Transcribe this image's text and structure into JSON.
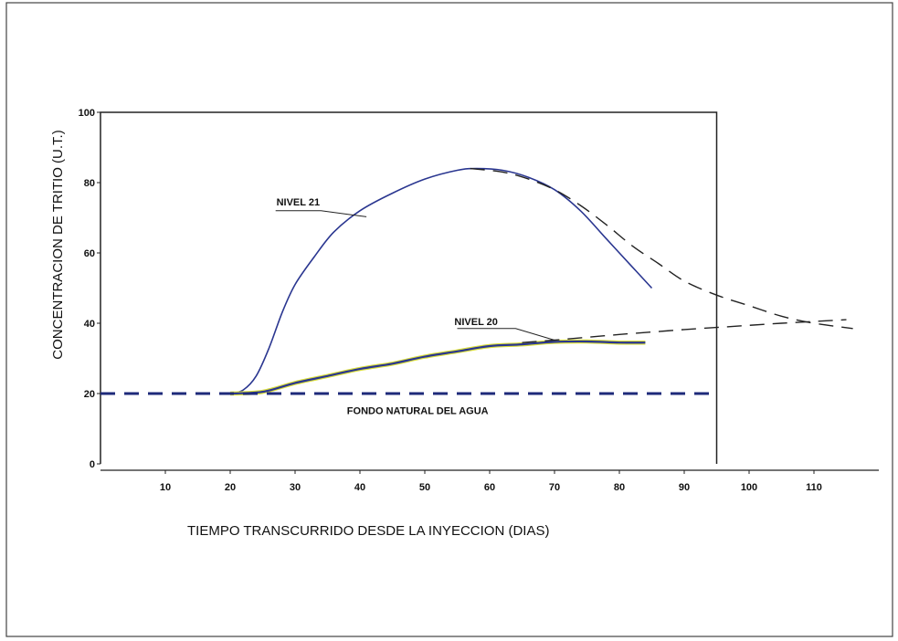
{
  "chart_data": {
    "type": "line",
    "title": "",
    "xlabel": "TIEMPO TRANSCURRIDO DESDE LA INYECCION (DIAS)",
    "ylabel": "CONCENTRACION DE TRITIO (U.T.)",
    "xlim": [
      0,
      118
    ],
    "ylim": [
      0,
      100
    ],
    "x_ticks": [
      10,
      20,
      30,
      40,
      50,
      60,
      70,
      80,
      90,
      100,
      110
    ],
    "y_ticks": [
      0,
      20,
      40,
      60,
      80,
      100
    ],
    "grid": false,
    "colors": {
      "measured": "#2a3690",
      "extrapolated": "#222222",
      "background": "#1e2a7a",
      "nivel20_fill": "#d8dc3a"
    },
    "series": [
      {
        "name": "NIVEL 21",
        "style": "solid",
        "x": [
          20,
          22,
          24,
          26,
          28,
          30,
          33,
          36,
          40,
          45,
          50,
          55,
          58,
          62,
          66,
          70,
          74,
          78,
          82,
          85
        ],
        "y": [
          20,
          21,
          25,
          33,
          43,
          51,
          59,
          66,
          72,
          77,
          81,
          83.5,
          84,
          83.5,
          81.5,
          78,
          72,
          64,
          56,
          50
        ]
      },
      {
        "name": "NIVEL 21",
        "style": "dashed",
        "x": [
          57,
          62,
          66,
          70,
          74,
          78,
          82,
          86,
          90,
          95,
          100,
          105,
          110,
          116
        ],
        "y": [
          84,
          83,
          81,
          78,
          73.5,
          68,
          62,
          57,
          52,
          48,
          45,
          42,
          40,
          38.5
        ]
      },
      {
        "name": "NIVEL 20",
        "style": "solid",
        "x": [
          20,
          25,
          30,
          35,
          40,
          45,
          50,
          55,
          60,
          65,
          70,
          75,
          80,
          84
        ],
        "y": [
          20,
          20.5,
          23,
          25,
          27,
          28.5,
          30.5,
          32,
          33.5,
          34,
          34.7,
          34.8,
          34.5,
          34.5
        ]
      },
      {
        "name": "NIVEL 20",
        "style": "dashed",
        "x": [
          65,
          70,
          75,
          80,
          85,
          90,
          95,
          100,
          105,
          110,
          115
        ],
        "y": [
          34.5,
          35.2,
          36,
          36.8,
          37.5,
          38.2,
          38.8,
          39.4,
          40,
          40.5,
          41
        ]
      },
      {
        "name": "FONDO NATURAL DEL AGUA",
        "style": "dashed-thick",
        "x": [
          0,
          95
        ],
        "y": [
          20,
          20
        ]
      }
    ],
    "annotations": [
      {
        "text": "NIVEL 21",
        "x": 26,
        "y": 74
      },
      {
        "text": "NIVEL 20",
        "x": 54,
        "y": 40
      },
      {
        "text": "FONDO NATURAL DEL AGUA",
        "x": 38,
        "y": 15
      }
    ]
  }
}
